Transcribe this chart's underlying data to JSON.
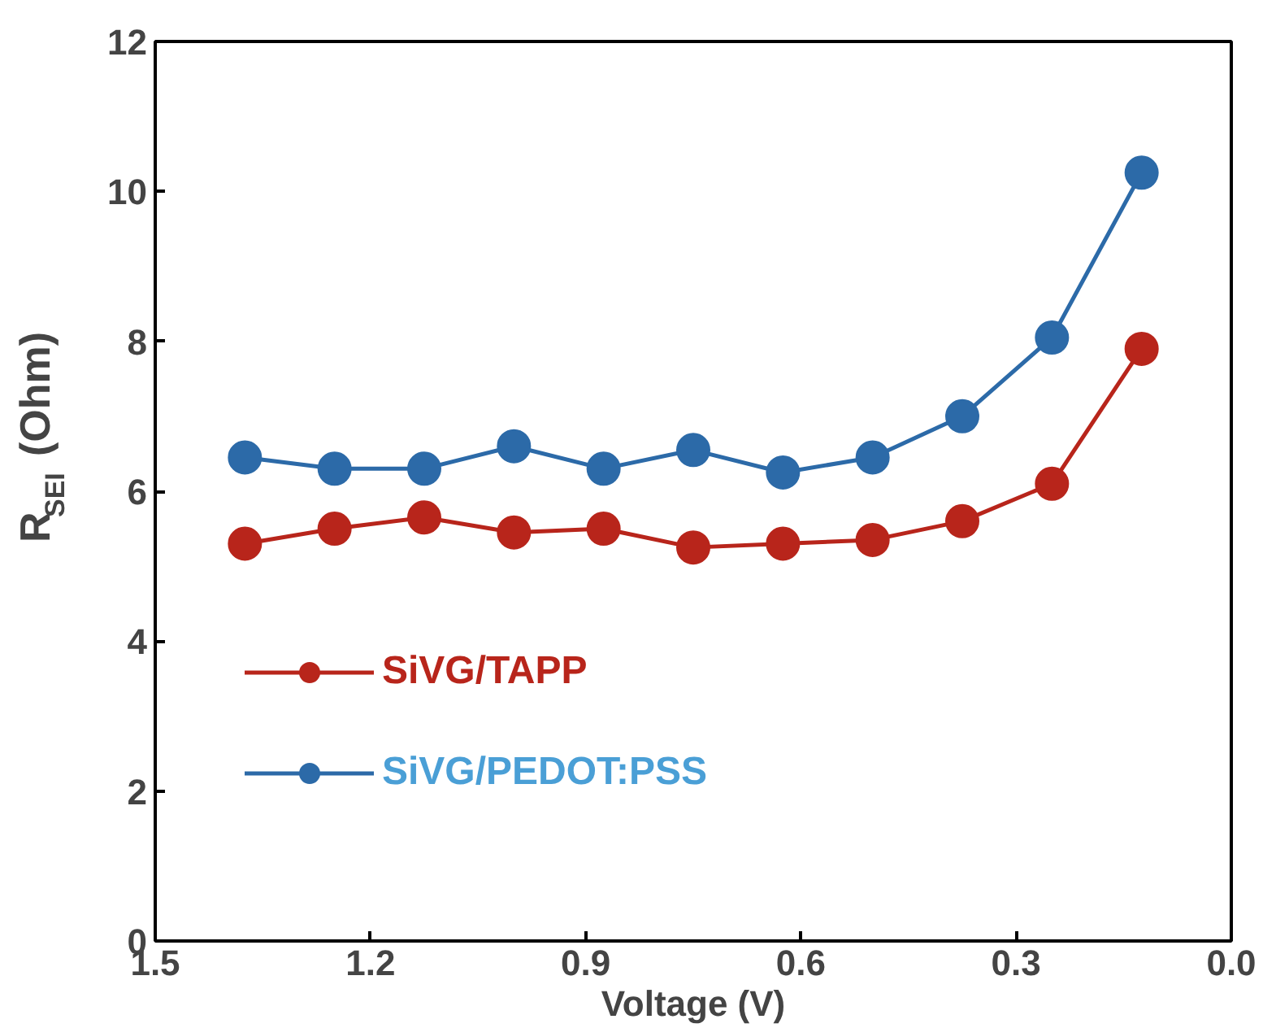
{
  "chart_data": {
    "type": "line",
    "xlabel": "Voltage (V)",
    "ylabel": "R$_{SEI}$ (Ohm)",
    "x": [
      1.375,
      1.25,
      1.125,
      1.0,
      0.875,
      0.75,
      0.625,
      0.5,
      0.375,
      0.25,
      0.125
    ],
    "series": [
      {
        "name": "SiVG/TAPP",
        "color": "#b8251b",
        "values": [
          5.3,
          5.5,
          5.65,
          5.45,
          5.5,
          5.25,
          5.3,
          5.35,
          5.6,
          6.1,
          7.9
        ]
      },
      {
        "name": "SiVG/PEDOT:PSS",
        "color": "#2c6aa8",
        "values": [
          6.45,
          6.3,
          6.3,
          6.6,
          6.3,
          6.55,
          6.25,
          6.45,
          7.0,
          8.05,
          10.25
        ]
      }
    ],
    "xlim": [
      1.5,
      0.0
    ],
    "xticks": [
      {
        "value": 1.5,
        "label": "1.5"
      },
      {
        "value": 1.2,
        "label": "1.2"
      },
      {
        "value": 0.9,
        "label": "0.9"
      },
      {
        "value": 0.6,
        "label": "0.6"
      },
      {
        "value": 0.3,
        "label": "0.3"
      },
      {
        "value": 0.0,
        "label": "0.0"
      }
    ],
    "ylim": [
      0,
      12
    ],
    "yticks": [
      0,
      2,
      4,
      6,
      8,
      10,
      12
    ],
    "marker": "circle",
    "line_style": "solid",
    "legend": "bottom left",
    "grid": false
  }
}
